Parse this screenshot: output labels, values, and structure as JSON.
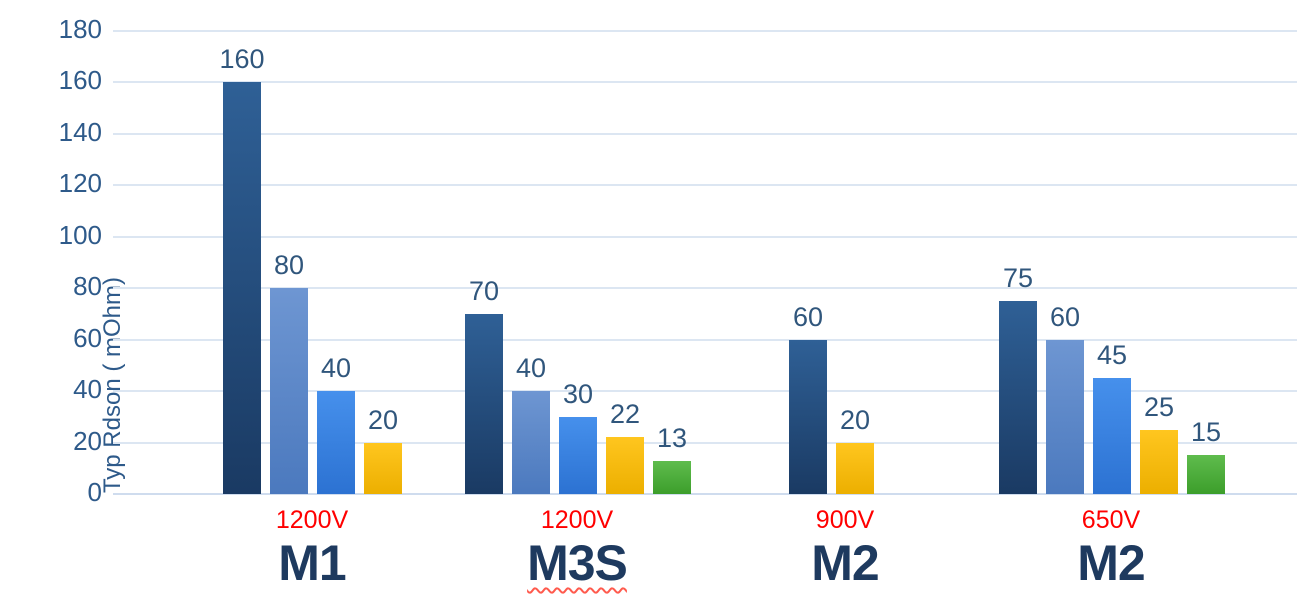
{
  "chart_data": {
    "type": "bar",
    "title": "",
    "xlabel": "",
    "ylabel": "Typ Rdson ( mOhm)",
    "ylim": [
      0,
      180
    ],
    "ytick_step": 20,
    "yticks": [
      0,
      20,
      40,
      60,
      80,
      100,
      120,
      140,
      160,
      180
    ],
    "grid": true,
    "legend": false,
    "categories": [
      "M1",
      "M3S",
      "M2",
      "M2"
    ],
    "category_voltages": [
      "1200V",
      "1200V",
      "900V",
      "650V"
    ],
    "groups": [
      {
        "name": "M1",
        "voltage": "1200V",
        "misspell_underline": false,
        "bars": [
          {
            "value": 160,
            "color": "navy"
          },
          {
            "value": 80,
            "color": "steel"
          },
          {
            "value": 40,
            "color": "blue"
          },
          {
            "value": 20,
            "color": "gold"
          }
        ]
      },
      {
        "name": "M3S",
        "voltage": "1200V",
        "misspell_underline": true,
        "bars": [
          {
            "value": 70,
            "color": "navy"
          },
          {
            "value": 40,
            "color": "steel"
          },
          {
            "value": 30,
            "color": "blue"
          },
          {
            "value": 22,
            "color": "gold"
          },
          {
            "value": 13,
            "color": "green"
          }
        ]
      },
      {
        "name": "M2",
        "voltage": "900V",
        "misspell_underline": false,
        "bars": [
          {
            "value": 60,
            "color": "navy"
          },
          {
            "value": 20,
            "color": "gold"
          }
        ]
      },
      {
        "name": "M2",
        "voltage": "650V",
        "misspell_underline": false,
        "bars": [
          {
            "value": 75,
            "color": "navy"
          },
          {
            "value": 60,
            "color": "steel"
          },
          {
            "value": 45,
            "color": "blue"
          },
          {
            "value": 25,
            "color": "gold"
          },
          {
            "value": 15,
            "color": "green"
          }
        ]
      }
    ],
    "palette": {
      "navy": {
        "top": "#2F6096",
        "bottom": "#1A3A63"
      },
      "steel": {
        "top": "#6E96D2",
        "bottom": "#4B79BE"
      },
      "blue": {
        "top": "#4690EC",
        "bottom": "#2C72D2"
      },
      "gold": {
        "top": "#FFC61F",
        "bottom": "#ECAF00"
      },
      "green": {
        "top": "#5FBC4D",
        "bottom": "#3C9E2B"
      }
    },
    "text_colors": {
      "value_label": "#30567C",
      "tick_label": "#2E5A8A",
      "voltage_label": "#FF0000",
      "name_label": "#1E3A5F",
      "gridline": "#DCE6F2",
      "baseline": "#CFDCEE"
    }
  }
}
